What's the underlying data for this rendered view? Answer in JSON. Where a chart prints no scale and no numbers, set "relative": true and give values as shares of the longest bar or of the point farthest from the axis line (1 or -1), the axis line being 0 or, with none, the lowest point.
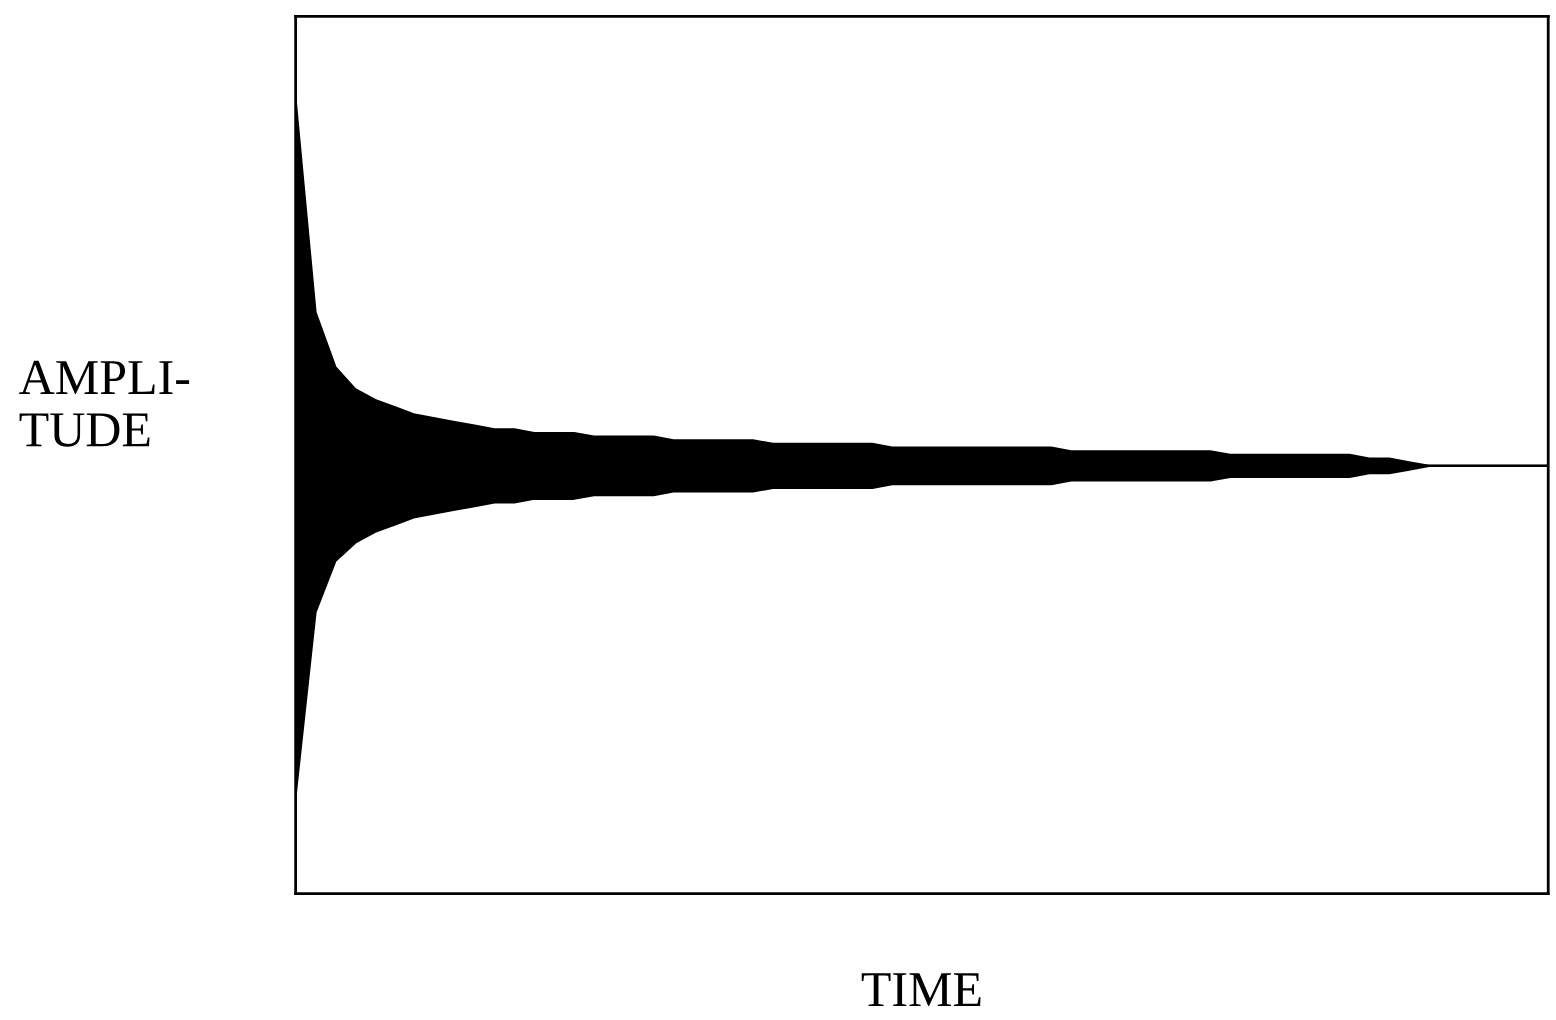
{
  "chart_data": {
    "type": "area",
    "relative": true,
    "xlabel": "TIME",
    "ylabel": "AMPLI-\nTUDE",
    "ref_lines": [
      {
        "axis": "y",
        "value": 0,
        "color": "#000000"
      }
    ],
    "categories": [
      null,
      null,
      null,
      null,
      null,
      null,
      null,
      null,
      null,
      null,
      null,
      null,
      null,
      null,
      null,
      null,
      null,
      null,
      null,
      null,
      null,
      null,
      null,
      null,
      null,
      null,
      null,
      null,
      null,
      null,
      null,
      null,
      null,
      null,
      null,
      null,
      null,
      null,
      null,
      null,
      null,
      null,
      null,
      null,
      null,
      null,
      null,
      null,
      null,
      null,
      null,
      null,
      null,
      null,
      null,
      null,
      null,
      null,
      null,
      null,
      null,
      null,
      null,
      null
    ],
    "series": [
      {
        "color": "#000000",
        "values": [
          1,
          0.42,
          0.27,
          0.21,
          0.18,
          0.16,
          0.14,
          0.13,
          0.12,
          0.11,
          0.1,
          0.1,
          0.09,
          0.09,
          0.09,
          0.08,
          0.08,
          0.08,
          0.08,
          0.07,
          0.07,
          0.07,
          0.07,
          0.07,
          0.06,
          0.06,
          0.06,
          0.06,
          0.06,
          0.06,
          0.05,
          0.05,
          0.05,
          0.05,
          0.05,
          0.05,
          0.05,
          0.05,
          0.05,
          0.04,
          0.04,
          0.04,
          0.04,
          0.04,
          0.04,
          0.04,
          0.04,
          0.03,
          0.03,
          0.03,
          0.03,
          0.03,
          0.03,
          0.03,
          0.02,
          0.02,
          0.01,
          0,
          0,
          0,
          0,
          0,
          0,
          0
        ]
      },
      {
        "color": "#000000",
        "values": [
          -0.9,
          -0.4,
          -0.26,
          -0.21,
          -0.18,
          -0.16,
          -0.14,
          -0.13,
          -0.12,
          -0.11,
          -0.1,
          -0.1,
          -0.09,
          -0.09,
          -0.09,
          -0.08,
          -0.08,
          -0.08,
          -0.08,
          -0.07,
          -0.07,
          -0.07,
          -0.07,
          -0.07,
          -0.06,
          -0.06,
          -0.06,
          -0.06,
          -0.06,
          -0.06,
          -0.05,
          -0.05,
          -0.05,
          -0.05,
          -0.05,
          -0.05,
          -0.05,
          -0.05,
          -0.05,
          -0.04,
          -0.04,
          -0.04,
          -0.04,
          -0.04,
          -0.04,
          -0.04,
          -0.04,
          -0.03,
          -0.03,
          -0.03,
          -0.03,
          -0.03,
          -0.03,
          -0.03,
          -0.02,
          -0.02,
          -0.01,
          0,
          0,
          0,
          0,
          0,
          0,
          0
        ]
      }
    ]
  }
}
